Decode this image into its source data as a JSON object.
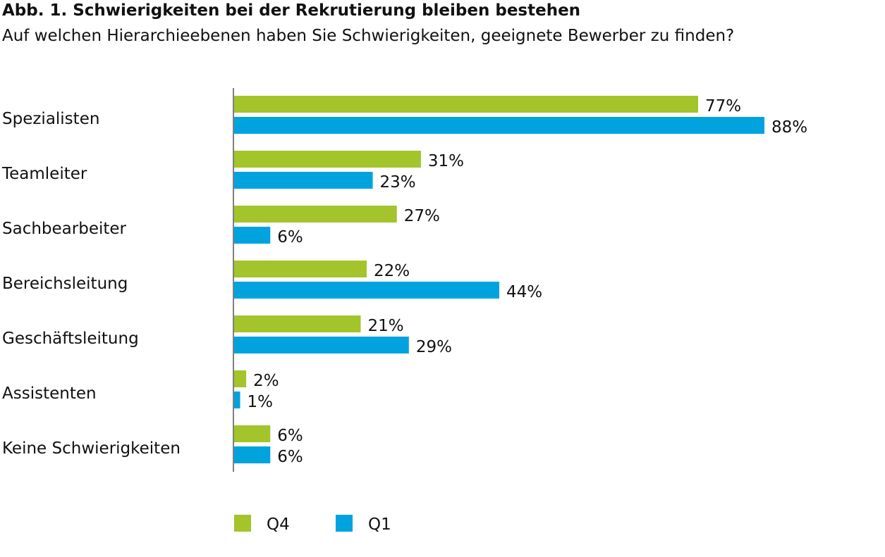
{
  "chart_data": {
    "type": "bar",
    "orientation": "horizontal",
    "title": "Abb. 1. Schwierigkeiten bei der Rekrutierung bleiben bestehen",
    "subtitle": "Auf welchen Hierarchieebenen haben Sie Schwierigkeiten, geeignete Bewerber zu finden?",
    "categories": [
      "Spezialisten",
      "Teamleiter",
      "Sachbearbeiter",
      "Bereichsleitung",
      "Geschäftsleitung",
      "Assistenten",
      "Keine Schwierigkeiten"
    ],
    "series": [
      {
        "name": "Q4",
        "color": "#a3c42b",
        "values": [
          77,
          31,
          27,
          22,
          21,
          2,
          6
        ]
      },
      {
        "name": "Q1",
        "color": "#00a3dd",
        "values": [
          88,
          23,
          6,
          44,
          29,
          1,
          6
        ]
      }
    ],
    "value_suffix": "%",
    "xlim": [
      0,
      100
    ],
    "grid": false,
    "legend": "bottom"
  }
}
